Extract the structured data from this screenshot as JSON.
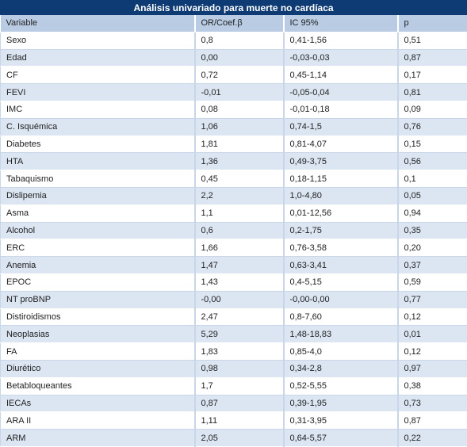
{
  "title": "Análisis univariado para muerte no cardíaca",
  "columns": [
    "Variable",
    "OR/Coef.β",
    "IC 95%",
    "p"
  ],
  "rows": [
    [
      "Sexo",
      "0,8",
      "0,41-1,56",
      "0,51"
    ],
    [
      "Edad",
      "0,00",
      "-0,03-0,03",
      "0,87"
    ],
    [
      "CF",
      "0,72",
      "0,45-1,14",
      "0,17"
    ],
    [
      "FEVI",
      "-0,01",
      "-0,05-0,04",
      "0,81"
    ],
    [
      "IMC",
      "0,08",
      "-0,01-0,18",
      "0,09"
    ],
    [
      "C. Isquémica",
      "1,06",
      "0,74-1,5",
      "0,76"
    ],
    [
      "Diabetes",
      "1,81",
      "0,81-4,07",
      "0,15"
    ],
    [
      "HTA",
      "1,36",
      "0,49-3,75",
      "0,56"
    ],
    [
      "Tabaquismo",
      "0,45",
      "0,18-1,15",
      "0,1"
    ],
    [
      "Dislipemia",
      "2,2",
      "1,0-4,80",
      "0,05"
    ],
    [
      "Asma",
      "1,1",
      "0,01-12,56",
      "0,94"
    ],
    [
      "Alcohol",
      "0,6",
      "0,2-1,75",
      "0,35"
    ],
    [
      "ERC",
      "1,66",
      "0,76-3,58",
      "0,20"
    ],
    [
      "Anemia",
      "1,47",
      "0,63-3,41",
      "0,37"
    ],
    [
      "EPOC",
      "1,43",
      "0,4-5,15",
      "0,59"
    ],
    [
      "NT proBNP",
      "-0,00",
      "-0,00-0,00",
      "0,77"
    ],
    [
      "Distiroidismos",
      "2,47",
      "0,8-7,60",
      "0,12"
    ],
    [
      "Neoplasias",
      "5,29",
      "1,48-18,83",
      "0,01"
    ],
    [
      "FA",
      "1,83",
      "0,85-4,0",
      "0,12"
    ],
    [
      "Diurético",
      "0,98",
      "0,34-2,8",
      "0,97"
    ],
    [
      "Betabloqueantes",
      "1,7",
      "0,52-5,55",
      "0,38"
    ],
    [
      "IECAs",
      "0,87",
      "0,39-1,95",
      "0,73"
    ],
    [
      "ARA II",
      "1,11",
      "0,31-3,95",
      "0,87"
    ],
    [
      "ARM",
      "2,05",
      "0,64-5,57",
      "0,22"
    ]
  ],
  "colors": {
    "title_bg": "#0e3b73",
    "header_bg": "#b9cce4",
    "stripe_bg": "#dce6f2"
  }
}
